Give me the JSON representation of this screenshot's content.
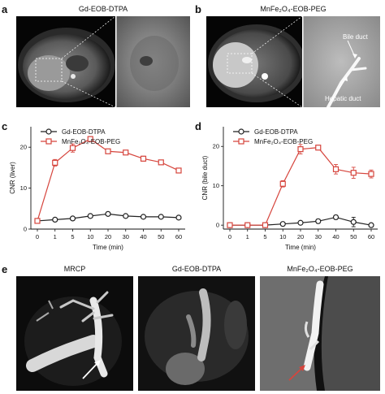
{
  "panels": {
    "a": {
      "letter": "a",
      "title": "Gd-EOB-DTPA"
    },
    "b": {
      "letter": "b",
      "title": "MnFe₂O₄-EOB-PEG",
      "annotations": {
        "bile": "Bile duct",
        "hepatic": "Hepatic duct"
      }
    },
    "c": {
      "letter": "c"
    },
    "d": {
      "letter": "d"
    },
    "e": {
      "letter": "e",
      "titles": [
        "MRCP",
        "Gd-EOB-DTPA",
        "MnFe₂O₄-EOB-PEG"
      ]
    }
  },
  "chart_data": [
    {
      "id": "c",
      "type": "line",
      "categories": [
        "0",
        "1",
        "5",
        "10",
        "20",
        "30",
        "40",
        "50",
        "60"
      ],
      "xlabel": "Time (min)",
      "ylabel": "CNR (liver)",
      "ylim": [
        0,
        25
      ],
      "yticks": [
        "0",
        "10",
        "20"
      ],
      "legend_position": "top-left",
      "series": [
        {
          "name": "Gd-EOB-DTPA",
          "color": "#222222",
          "marker": "circle",
          "values": [
            2.0,
            2.3,
            2.6,
            3.2,
            3.7,
            3.2,
            3.0,
            3.0,
            2.8
          ],
          "errors": [
            0.3,
            0.3,
            0.3,
            0.4,
            0.4,
            0.3,
            0.3,
            0.3,
            0.3
          ]
        },
        {
          "name": "MnFe₂O₄-EOB-PEG",
          "color": "#d6453d",
          "marker": "square",
          "values": [
            2.0,
            16.2,
            19.8,
            22.0,
            19.0,
            18.7,
            17.2,
            16.3,
            14.3
          ],
          "errors": [
            0.4,
            0.8,
            1.0,
            0.6,
            0.5,
            0.4,
            0.6,
            0.4,
            0.4
          ]
        }
      ]
    },
    {
      "id": "d",
      "type": "line",
      "categories": [
        "0",
        "1",
        "5",
        "10",
        "20",
        "30",
        "40",
        "50",
        "60"
      ],
      "xlabel": "Time (min)",
      "ylabel": "CNR (bile duct)",
      "ylim": [
        -1,
        25
      ],
      "yticks": [
        "0",
        "10",
        "20"
      ],
      "legend_position": "top-left",
      "series": [
        {
          "name": "Gd-EOB-DTPA",
          "color": "#222222",
          "marker": "circle",
          "values": [
            0,
            0,
            0,
            0.3,
            0.6,
            1.0,
            2.0,
            0.8,
            0
          ],
          "errors": [
            0,
            0,
            0,
            0.2,
            0.3,
            0.5,
            0.5,
            1.2,
            0.3
          ]
        },
        {
          "name": "MnFe₂O₄-EOB-PEG",
          "color": "#d6453d",
          "marker": "square",
          "values": [
            0,
            0,
            0,
            10.5,
            19.3,
            19.7,
            14.2,
            13.3,
            13.0
          ],
          "errors": [
            0,
            0,
            0,
            0.8,
            1.2,
            0.6,
            1.2,
            1.4,
            1.0
          ]
        }
      ]
    }
  ]
}
